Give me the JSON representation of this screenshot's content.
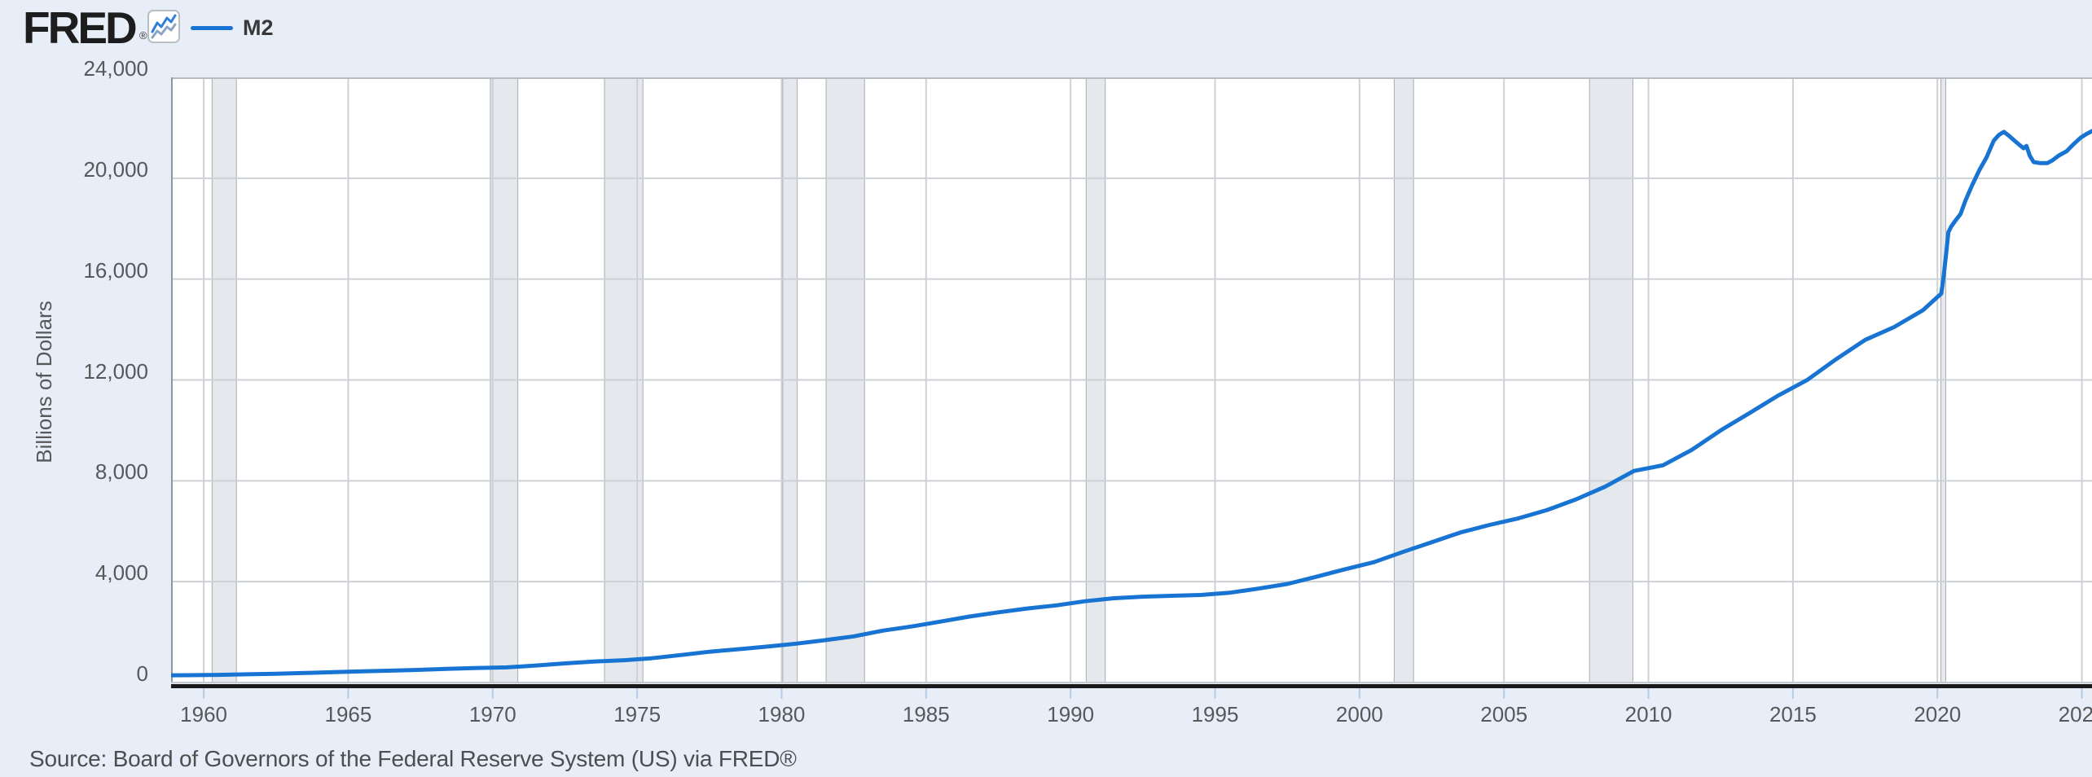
{
  "header": {
    "logo_text": "FRED",
    "logo_registered_mark": "®",
    "legend_label": "M2"
  },
  "source": {
    "text": "Source: Board of Governors of the Federal Reserve System (US) via FRED®"
  },
  "colors": {
    "page_background": "#e8eef8",
    "plot_background": "#ffffff",
    "series_line": "#1874d2",
    "gridline": "#cdd1d6",
    "plot_top_border": "#b7bcc1",
    "plot_left_border": "#8f979e",
    "zero_line": "#c6cacd",
    "axis_bar": "#1a1a1a",
    "tick_mark": "#b5cce6",
    "recession_band_fill": "#e5e9ed",
    "recession_band_edge": "#a8adb2",
    "tick_text": "#56585a",
    "source_text": "#4c4e50",
    "logo_icon_line_top": "#2f7ed8",
    "logo_icon_line_bottom": "#8aa5c4"
  },
  "chart_data": {
    "type": "line",
    "title": "",
    "xlabel": "",
    "ylabel": "Billions of Dollars",
    "xlim": [
      1958.87,
      2025.35
    ],
    "ylim": [
      0,
      24000
    ],
    "grid": true,
    "legend_position": "top-left",
    "x_ticks": [
      1960,
      1965,
      1970,
      1975,
      1980,
      1985,
      1990,
      1995,
      2000,
      2005,
      2010,
      2015,
      2020,
      2025
    ],
    "y_tick_values": [
      0,
      4000,
      8000,
      12000,
      16000,
      20000,
      24000
    ],
    "y_tick_labels": [
      "0",
      "4,000",
      "8,000",
      "12,000",
      "16,000",
      "20,000",
      "24,000"
    ],
    "recession_bands": [
      [
        1960.29,
        1961.13
      ],
      [
        1969.92,
        1970.87
      ],
      [
        1973.87,
        1975.2
      ],
      [
        1980.04,
        1980.54
      ],
      [
        1981.54,
        1982.87
      ],
      [
        1990.54,
        1991.2
      ],
      [
        2001.2,
        2001.87
      ],
      [
        2007.96,
        2009.46
      ],
      [
        2020.12,
        2020.29
      ]
    ],
    "series": [
      {
        "name": "M2",
        "units": "Billions of Dollars",
        "points": [
          [
            1958.87,
            286
          ],
          [
            1959.5,
            292
          ],
          [
            1960.5,
            304
          ],
          [
            1961.5,
            325
          ],
          [
            1962.5,
            350
          ],
          [
            1963.5,
            379
          ],
          [
            1964.5,
            409
          ],
          [
            1965.5,
            442
          ],
          [
            1966.5,
            471
          ],
          [
            1967.5,
            503
          ],
          [
            1968.5,
            545
          ],
          [
            1969.5,
            579
          ],
          [
            1970.5,
            601
          ],
          [
            1971.5,
            674
          ],
          [
            1972.5,
            758
          ],
          [
            1973.5,
            832
          ],
          [
            1974.5,
            881
          ],
          [
            1975.5,
            964
          ],
          [
            1976.5,
            1087
          ],
          [
            1977.5,
            1222
          ],
          [
            1978.5,
            1322
          ],
          [
            1979.5,
            1426
          ],
          [
            1980.5,
            1540
          ],
          [
            1981.5,
            1680
          ],
          [
            1982.5,
            1833
          ],
          [
            1983.5,
            2058
          ],
          [
            1984.5,
            2222
          ],
          [
            1985.5,
            2416
          ],
          [
            1986.5,
            2616
          ],
          [
            1987.5,
            2786
          ],
          [
            1988.5,
            2937
          ],
          [
            1989.5,
            3060
          ],
          [
            1990.5,
            3223
          ],
          [
            1991.5,
            3342
          ],
          [
            1992.5,
            3405
          ],
          [
            1993.5,
            3440
          ],
          [
            1994.5,
            3473
          ],
          [
            1995.5,
            3559
          ],
          [
            1996.5,
            3724
          ],
          [
            1997.5,
            3910
          ],
          [
            1998.5,
            4192
          ],
          [
            1999.5,
            4494
          ],
          [
            2000.5,
            4773
          ],
          [
            2001.5,
            5178
          ],
          [
            2002.5,
            5567
          ],
          [
            2003.5,
            5952
          ],
          [
            2004.5,
            6251
          ],
          [
            2005.5,
            6512
          ],
          [
            2006.5,
            6845
          ],
          [
            2007.5,
            7268
          ],
          [
            2008.5,
            7764
          ],
          [
            2009.5,
            8391
          ],
          [
            2010.5,
            8616
          ],
          [
            2011.5,
            9229
          ],
          [
            2012.5,
            10000
          ],
          [
            2013.5,
            10690
          ],
          [
            2014.5,
            11389
          ],
          [
            2015.5,
            12002
          ],
          [
            2016.5,
            12828
          ],
          [
            2017.5,
            13588
          ],
          [
            2018.5,
            14097
          ],
          [
            2019.5,
            14765
          ],
          [
            2020.04,
            15330
          ],
          [
            2020.13,
            15420
          ],
          [
            2020.21,
            16050
          ],
          [
            2020.3,
            16990
          ],
          [
            2020.38,
            17860
          ],
          [
            2020.47,
            18070
          ],
          [
            2020.63,
            18330
          ],
          [
            2020.8,
            18580
          ],
          [
            2020.97,
            19110
          ],
          [
            2021.2,
            19720
          ],
          [
            2021.45,
            20320
          ],
          [
            2021.7,
            20820
          ],
          [
            2021.95,
            21490
          ],
          [
            2022.13,
            21720
          ],
          [
            2022.3,
            21840
          ],
          [
            2022.47,
            21690
          ],
          [
            2022.72,
            21440
          ],
          [
            2022.98,
            21190
          ],
          [
            2023.08,
            21280
          ],
          [
            2023.2,
            20890
          ],
          [
            2023.33,
            20640
          ],
          [
            2023.56,
            20600
          ],
          [
            2023.8,
            20600
          ],
          [
            2023.98,
            20710
          ],
          [
            2024.2,
            20900
          ],
          [
            2024.47,
            21070
          ],
          [
            2024.72,
            21360
          ],
          [
            2024.97,
            21620
          ],
          [
            2025.17,
            21760
          ],
          [
            2025.37,
            21880
          ]
        ]
      }
    ]
  }
}
